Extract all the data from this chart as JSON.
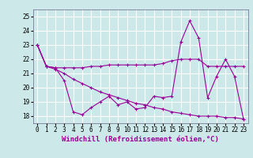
{
  "xlabel": "Windchill (Refroidissement éolien,°C)",
  "ylabel": "",
  "background_color": "#cce8e8",
  "grid_color": "#ffffff",
  "line_color": "#990099",
  "xlim": [
    -0.5,
    23.5
  ],
  "ylim": [
    17.5,
    25.5
  ],
  "yticks": [
    18,
    19,
    20,
    21,
    22,
    23,
    24,
    25
  ],
  "xticks": [
    0,
    1,
    2,
    3,
    4,
    5,
    6,
    7,
    8,
    9,
    10,
    11,
    12,
    13,
    14,
    15,
    16,
    17,
    18,
    19,
    20,
    21,
    22,
    23
  ],
  "line1_x": [
    0,
    1,
    2,
    3,
    4,
    5,
    6,
    7,
    8,
    9,
    10,
    11,
    12,
    13,
    14,
    15,
    16,
    17,
    18,
    19,
    20,
    21,
    22,
    23
  ],
  "line1_y": [
    23.0,
    21.5,
    21.4,
    20.5,
    18.3,
    18.1,
    18.6,
    19.0,
    19.4,
    18.8,
    19.0,
    18.5,
    18.6,
    19.4,
    19.3,
    19.4,
    23.2,
    24.7,
    23.5,
    19.3,
    20.8,
    22.0,
    20.8,
    17.8
  ],
  "line2_x": [
    0,
    1,
    2,
    3,
    4,
    5,
    6,
    7,
    8,
    9,
    10,
    11,
    12,
    13,
    14,
    15,
    16,
    17,
    18,
    19,
    20,
    21,
    22,
    23
  ],
  "line2_y": [
    23.0,
    21.5,
    21.4,
    21.4,
    21.4,
    21.4,
    21.5,
    21.5,
    21.6,
    21.6,
    21.6,
    21.6,
    21.6,
    21.6,
    21.7,
    21.9,
    22.0,
    22.0,
    22.0,
    21.5,
    21.5,
    21.5,
    21.5,
    21.5
  ],
  "line3_x": [
    0,
    1,
    2,
    3,
    4,
    5,
    6,
    7,
    8,
    9,
    10,
    11,
    12,
    13,
    14,
    15,
    16,
    17,
    18,
    19,
    20,
    21,
    22,
    23
  ],
  "line3_y": [
    23.0,
    21.5,
    21.3,
    21.0,
    20.6,
    20.3,
    20.0,
    19.7,
    19.5,
    19.3,
    19.1,
    18.9,
    18.8,
    18.6,
    18.5,
    18.3,
    18.2,
    18.1,
    18.0,
    18.0,
    18.0,
    17.9,
    17.9,
    17.8
  ],
  "marker": "+",
  "markersize": 3,
  "linewidth": 0.8,
  "tick_fontsize": 5.5,
  "xlabel_fontsize": 6.5
}
